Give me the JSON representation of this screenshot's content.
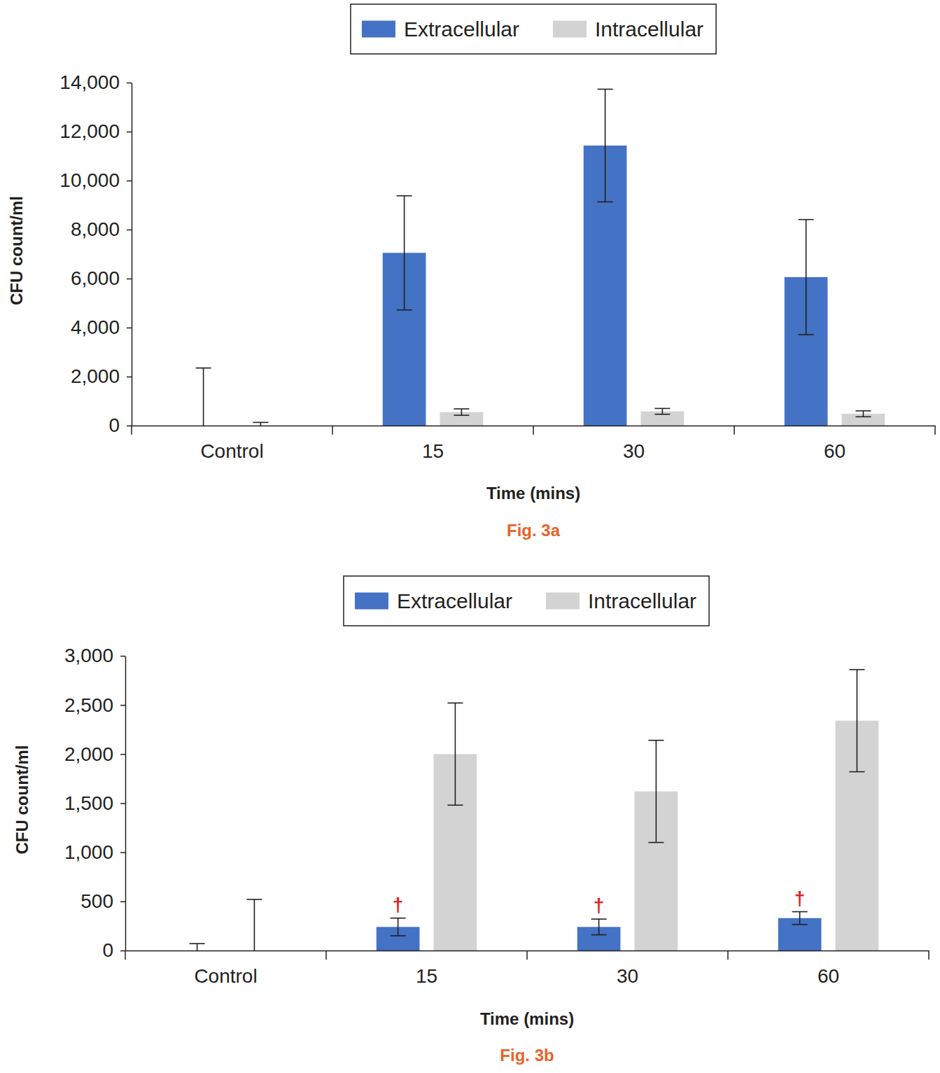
{
  "chart_data": [
    {
      "type": "bar",
      "caption": "Fig. 3a",
      "x_label": "Time (mins)",
      "y_label": "CFU count/ml",
      "categories": [
        "Control",
        "15",
        "30",
        "60"
      ],
      "series": [
        {
          "name": "Extracellular",
          "color": "#4472c4",
          "values": [
            0,
            7050,
            11430,
            6060
          ],
          "errors": [
            2350,
            2330,
            2300,
            2350
          ]
        },
        {
          "name": "Intracellular",
          "color": "#d3d3d4",
          "values": [
            0,
            550,
            580,
            480
          ],
          "errors": [
            130,
            130,
            120,
            120
          ]
        }
      ],
      "ylim": [
        0,
        14000
      ],
      "yticks": [
        0,
        {
          "value": 2000,
          "label": "2,000"
        },
        {
          "value": 4000,
          "label": "4,000"
        },
        {
          "value": 6000,
          "label": "6,000"
        },
        {
          "value": 8000,
          "label": "8,000"
        },
        {
          "value": 10000,
          "label": "10,000"
        },
        {
          "value": 12000,
          "label": "12,000"
        },
        {
          "value": 14000,
          "label": "14,000"
        }
      ],
      "grid": false,
      "legend": "top"
    },
    {
      "type": "bar",
      "caption": "Fig. 3b",
      "x_label": "Time (mins)",
      "y_label": "CFU count/ml",
      "categories": [
        "Control",
        "15",
        "30",
        "60"
      ],
      "series": [
        {
          "name": "Extracellular",
          "color": "#4472c4",
          "values": [
            0,
            240,
            240,
            330
          ],
          "errors": [
            70,
            90,
            80,
            65
          ]
        },
        {
          "name": "Intracellular",
          "color": "#d3d3d4",
          "values": [
            0,
            2000,
            1620,
            2340
          ],
          "errors": [
            520,
            520,
            520,
            520
          ]
        }
      ],
      "ylim": [
        0,
        3000
      ],
      "yticks": [
        0,
        500,
        {
          "value": 1000,
          "label": "1,000"
        },
        {
          "value": 1500,
          "label": "1,500"
        },
        {
          "value": 2000,
          "label": "2,000"
        },
        {
          "value": 2500,
          "label": "2,500"
        },
        {
          "value": 3000,
          "label": "3,000"
        }
      ],
      "annotations": [
        {
          "text": "†",
          "category": "15",
          "series": "Extracellular",
          "color": "#e31e24"
        },
        {
          "text": "†",
          "category": "30",
          "series": "Extracellular",
          "color": "#e31e24"
        },
        {
          "text": "†",
          "category": "60",
          "series": "Extracellular",
          "color": "#e31e24"
        }
      ],
      "grid": false,
      "legend": "top"
    }
  ]
}
